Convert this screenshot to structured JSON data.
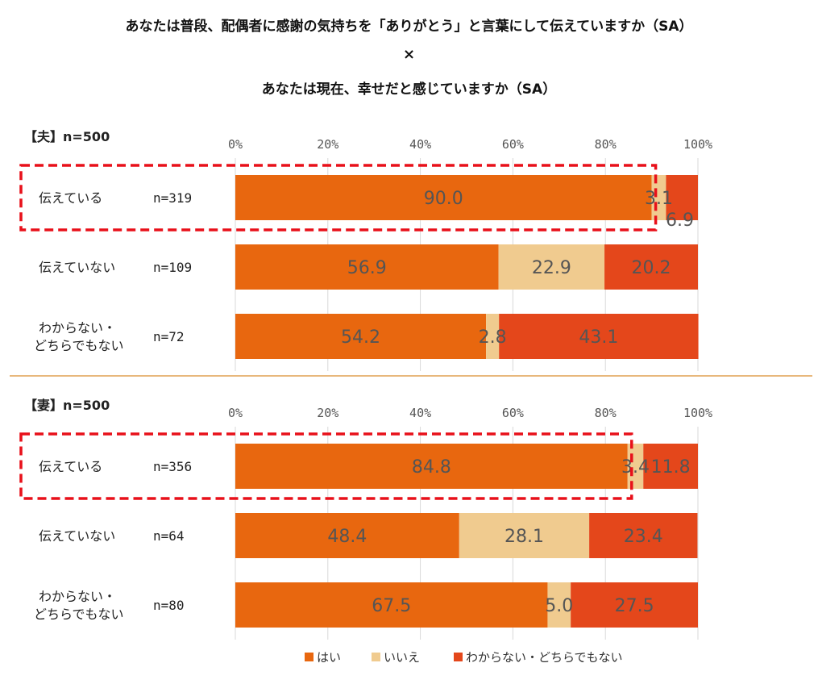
{
  "titles": {
    "line1": "あなたは普段、配偶者に感謝の気持ちを「ありがとう」と言葉にして伝えていますか（SA）",
    "line2": "×",
    "line3": "あなたは現在、幸せだと感じていますか（SA）"
  },
  "colors": {
    "yes": "#E8670F",
    "no": "#F0CB8F",
    "unknown": "#E4471B",
    "highlight": "#E8101A",
    "divider": "#E0A050",
    "grid": "#D9D9D9"
  },
  "chart_data": [
    {
      "type": "bar",
      "orientation": "horizontal",
      "stacked": true,
      "panel_title": "【夫】n=500",
      "xlim": [
        0,
        100
      ],
      "xticks": [
        "0%",
        "20%",
        "40%",
        "60%",
        "80%",
        "100%"
      ],
      "categories": [
        "伝えている",
        "伝えていない",
        "わからない・どちらでもない"
      ],
      "category_lines": [
        [
          "伝えている"
        ],
        [
          "伝えていない"
        ],
        [
          "わからない・",
          "どちらでもない"
        ]
      ],
      "n": [
        "n=319",
        "n=109",
        "n=72"
      ],
      "series": [
        {
          "name": "はい",
          "values": [
            90.0,
            56.9,
            54.2
          ],
          "labels": [
            "90.0",
            "56.9",
            "54.2"
          ]
        },
        {
          "name": "いいえ",
          "values": [
            3.1,
            22.9,
            2.8
          ],
          "labels": [
            "3.1",
            "22.9",
            "2.8"
          ]
        },
        {
          "name": "わからない・どちらでもない",
          "values": [
            6.9,
            20.2,
            43.1
          ],
          "labels": [
            "6.9",
            "20.2",
            "43.1"
          ]
        }
      ],
      "highlighted_row": 0
    },
    {
      "type": "bar",
      "orientation": "horizontal",
      "stacked": true,
      "panel_title": "【妻】n=500",
      "xlim": [
        0,
        100
      ],
      "xticks": [
        "0%",
        "20%",
        "40%",
        "60%",
        "80%",
        "100%"
      ],
      "categories": [
        "伝えている",
        "伝えていない",
        "わからない・どちらでもない"
      ],
      "category_lines": [
        [
          "伝えている"
        ],
        [
          "伝えていない"
        ],
        [
          "わからない・",
          "どちらでもない"
        ]
      ],
      "n": [
        "n=356",
        "n=64",
        "n=80"
      ],
      "series": [
        {
          "name": "はい",
          "values": [
            84.8,
            48.4,
            67.5
          ],
          "labels": [
            "84.8",
            "48.4",
            "67.5"
          ]
        },
        {
          "name": "いいえ",
          "values": [
            3.4,
            28.1,
            5.0
          ],
          "labels": [
            "3.4",
            "28.1",
            "5.0"
          ]
        },
        {
          "name": "わからない・どちらでもない",
          "values": [
            11.8,
            23.4,
            27.5
          ],
          "labels": [
            "11.8",
            "23.4",
            "27.5"
          ]
        }
      ],
      "highlighted_row": 0
    }
  ],
  "legend": [
    "はい",
    "いいえ",
    "わからない・どちらでもない"
  ]
}
